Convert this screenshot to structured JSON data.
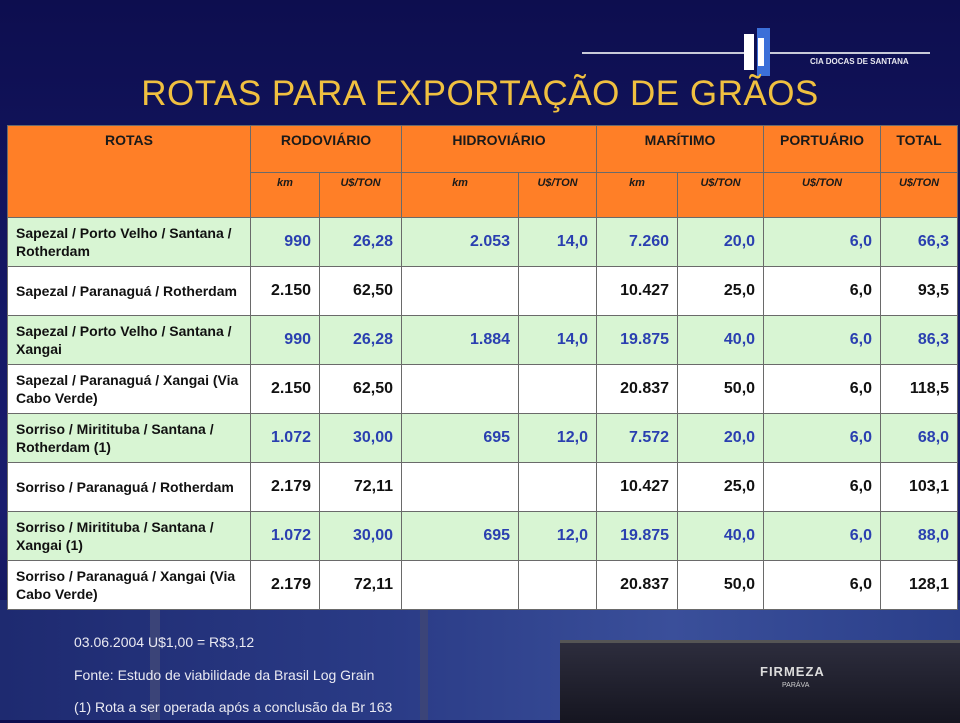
{
  "logo": {
    "text": "CIA DOCAS DE SANTANA"
  },
  "title": "ROTAS PARA EXPORTAÇÃO DE GRÃOS",
  "header": {
    "rotas": "ROTAS",
    "rodoviario": "RODOVIÁRIO",
    "hidroviario": "HIDROVIÁRIO",
    "maritimo": "MARÍTIMO",
    "portuario": "PORTUÁRIO",
    "total": "TOTAL",
    "km": "km",
    "usd_ton": "U$/TON"
  },
  "rows": [
    {
      "route": "Sapezal / Porto Velho / Santana / Rotherdam",
      "rod_km": "990",
      "rod_ton": "26,28",
      "hid_km": "2.053",
      "hid_ton": "14,0",
      "mar_km": "7.260",
      "mar_ton": "20,0",
      "port": "6,0",
      "total": "66,3"
    },
    {
      "route": "Sapezal / Paranaguá / Rotherdam",
      "rod_km": "2.150",
      "rod_ton": "62,50",
      "hid_km": "",
      "hid_ton": "",
      "mar_km": "10.427",
      "mar_ton": "25,0",
      "port": "6,0",
      "total": "93,5"
    },
    {
      "route": "Sapezal / Porto Velho / Santana / Xangai",
      "rod_km": "990",
      "rod_ton": "26,28",
      "hid_km": "1.884",
      "hid_ton": "14,0",
      "mar_km": "19.875",
      "mar_ton": "40,0",
      "port": "6,0",
      "total": "86,3"
    },
    {
      "route": "Sapezal / Paranaguá / Xangai (Via Cabo Verde)",
      "rod_km": "2.150",
      "rod_ton": "62,50",
      "hid_km": "",
      "hid_ton": "",
      "mar_km": "20.837",
      "mar_ton": "50,0",
      "port": "6,0",
      "total": "118,5"
    },
    {
      "route": "Sorriso / Miritituba / Santana / Rotherdam (1)",
      "rod_km": "1.072",
      "rod_ton": "30,00",
      "hid_km": "695",
      "hid_ton": "12,0",
      "mar_km": "7.572",
      "mar_ton": "20,0",
      "port": "6,0",
      "total": "68,0"
    },
    {
      "route": "Sorriso / Paranaguá / Rotherdam",
      "rod_km": "2.179",
      "rod_ton": "72,11",
      "hid_km": "",
      "hid_ton": "",
      "mar_km": "10.427",
      "mar_ton": "25,0",
      "port": "6,0",
      "total": "103,1"
    },
    {
      "route": "Sorriso / Miritituba / Santana / Xangai (1)",
      "rod_km": "1.072",
      "rod_ton": "30,00",
      "hid_km": "695",
      "hid_ton": "12,0",
      "mar_km": "19.875",
      "mar_ton": "40,0",
      "port": "6,0",
      "total": "88,0"
    },
    {
      "route": "Sorriso / Paranaguá / Xangai (Via Cabo Verde)",
      "rod_km": "2.179",
      "rod_ton": "72,11",
      "hid_km": "",
      "hid_ton": "",
      "mar_km": "20.837",
      "mar_ton": "50,0",
      "port": "6,0",
      "total": "128,1"
    }
  ],
  "notes": {
    "date": "03.06.2004  U$1,00 = R$3,12",
    "source": "Fonte: Estudo de viabilidade da Brasil Log Grain",
    "footnote": "(1) Rota a ser operada após a conclusão da Br 163"
  },
  "ship": {
    "name": "FIRMEZA",
    "sub": "PARÁVA"
  },
  "colors": {
    "header": "#ff7f27",
    "green_row": "#d8f5d3",
    "blue_num": "#2a3fb0",
    "title": "#f0c040"
  }
}
